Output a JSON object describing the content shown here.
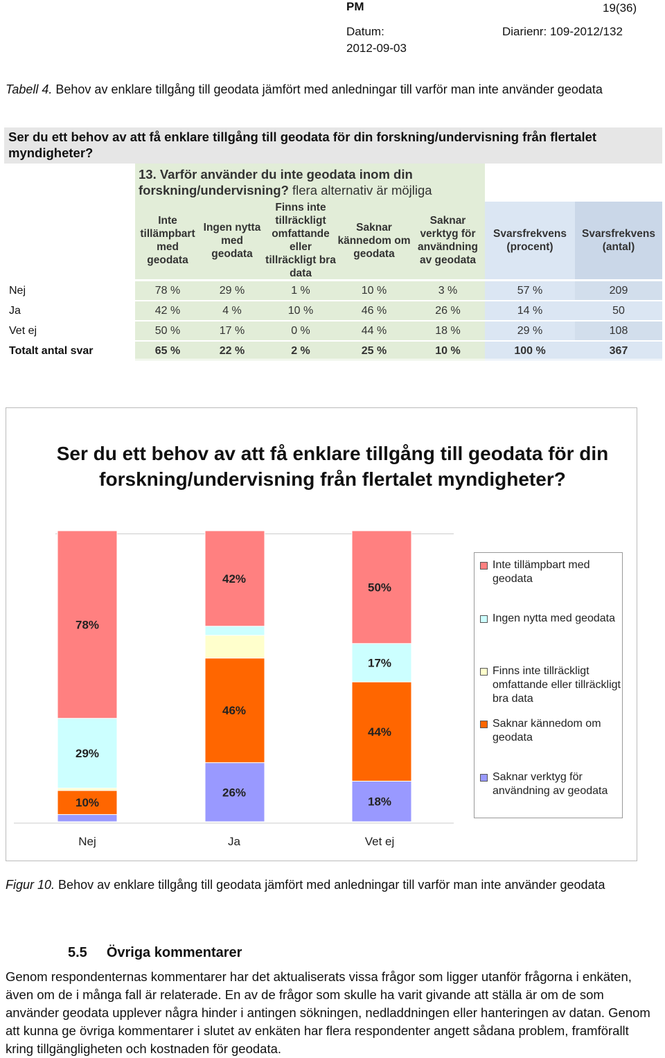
{
  "header": {
    "label": "PM",
    "page": "19(36)",
    "date_label": "Datum:",
    "date": "2012-09-03",
    "diarienr": "Diarienr: 109-2012/132"
  },
  "table_caption": {
    "prefix": "Tabell 4.",
    "text": " Behov av enklare tillgång till geodata jämfört med anledningar till varför man inte använder geodata"
  },
  "table": {
    "question": "Ser du ett behov av att få enklare tillgång till geodata för din forskning/undervisning från flertalet myndigheter?",
    "subquestion_bold": "13. Varför använder du inte geodata inom din forskning/undervisning?",
    "subquestion_note": " flera alternativ är möjliga",
    "columns": [
      "Inte tillämpbart med geodata",
      "Ingen nytta med geodata",
      "Finns inte tillräckligt omfattande eller tillräckligt bra data",
      "Saknar kännedom om geodata",
      "Saknar verktyg för användning av geodata",
      "Svarsfrekvens (procent)",
      "Svarsfrekvens (antal)"
    ],
    "rows": [
      {
        "label": "Nej",
        "values": [
          "78 %",
          "29 %",
          "1 %",
          "10 %",
          "3 %",
          "57 %",
          "209"
        ]
      },
      {
        "label": "Ja",
        "values": [
          "42 %",
          "4 %",
          "10 %",
          "46 %",
          "26 %",
          "14 %",
          "50"
        ]
      },
      {
        "label": "Vet ej",
        "values": [
          "50 %",
          "17 %",
          "0 %",
          "44 %",
          "18 %",
          "29 %",
          "108"
        ]
      },
      {
        "label": "Totalt antal svar",
        "values": [
          "65 %",
          "22 %",
          "2 %",
          "25 %",
          "10 %",
          "100 %",
          "367"
        ]
      }
    ]
  },
  "chart_data": {
    "type": "bar",
    "stacked": true,
    "title": "Ser du ett behov av att få enklare tillgång till geodata för din forskning/undervisning från flertalet myndigheter?",
    "categories": [
      "Nej",
      "Ja",
      "Vet ej"
    ],
    "series": [
      {
        "name": "Inte tillämpbart med geodata",
        "color": "#ff8080",
        "values": [
          78,
          42,
          50
        ],
        "labels": [
          "78%",
          "42%",
          "50%"
        ]
      },
      {
        "name": "Ingen nytta med geodata",
        "color": "#ccffff",
        "values": [
          29,
          4,
          17
        ],
        "labels": [
          "29%",
          "",
          "17%"
        ]
      },
      {
        "name": "Finns inte tillräckligt omfattande eller tillräckligt bra data",
        "color": "#ffffcc",
        "values": [
          1,
          10,
          0
        ],
        "labels": [
          "",
          "",
          ""
        ]
      },
      {
        "name": "Saknar kännedom om geodata",
        "color": "#ff6600",
        "values": [
          10,
          46,
          44
        ],
        "labels": [
          "10%",
          "46%",
          "44%"
        ]
      },
      {
        "name": "Saknar verktyg för användning av geodata",
        "color": "#9999ff",
        "values": [
          3,
          26,
          18
        ],
        "labels": [
          "",
          "26%",
          "18%"
        ]
      }
    ],
    "legend": "right"
  },
  "figure_caption": {
    "prefix": "Figur 10.",
    "text": " Behov av enklare tillgång till geodata jämfört med anledningar till varför man inte använder geodata"
  },
  "section": {
    "number": "5.5",
    "title": "Övriga kommentarer",
    "body": "Genom respondenternas kommentarer har det aktualiserats vissa frågor som ligger utanför frågorna i enkäten, även om de i många fall är relaterade. En av de frågor som skulle ha varit givande att ställa är om de som använder geodata upplever några hinder i antingen sökningen, nedladdningen eller hanteringen av datan. Genom att kunna ge övriga kommentarer i slutet av enkäten har flera respondenter angett sådana problem, framförallt kring tillgängligheten och kostnaden för geodata."
  }
}
